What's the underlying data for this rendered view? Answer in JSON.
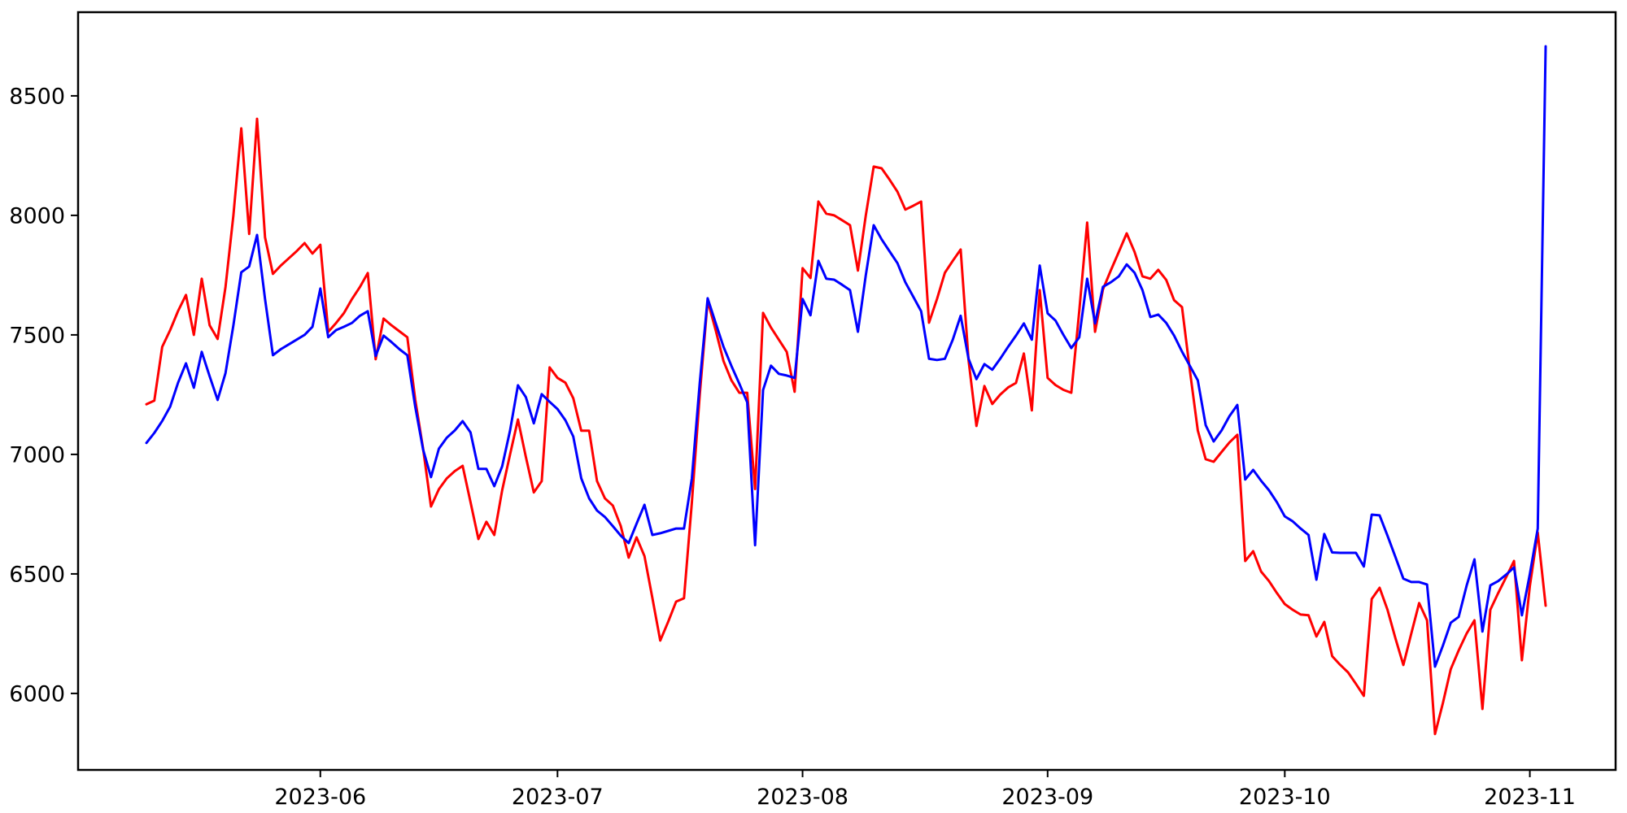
{
  "figure": {
    "background_color": "#ffffff",
    "frame_color": "#000000",
    "tick_label_color": "#000000"
  },
  "chart_data": {
    "type": "line",
    "title": "",
    "xlabel": "",
    "ylabel": "",
    "grid": false,
    "legend": null,
    "ylim": [
      5680,
      8850
    ],
    "y_ticks": [
      {
        "label": "6000",
        "value": 6000
      },
      {
        "label": "6500",
        "value": 6500
      },
      {
        "label": "7000",
        "value": 7000
      },
      {
        "label": "7500",
        "value": 7500
      },
      {
        "label": "8000",
        "value": 8000
      },
      {
        "label": "8500",
        "value": 8500
      }
    ],
    "x_ticks": [
      {
        "label": "2023-06",
        "index": 22
      },
      {
        "label": "2023-07",
        "index": 52
      },
      {
        "label": "2023-08",
        "index": 83
      },
      {
        "label": "2023-09",
        "index": 114
      },
      {
        "label": "2023-10",
        "index": 144
      },
      {
        "label": "2023-11",
        "index": 175
      }
    ],
    "dates": [
      "2023-05-10",
      "2023-05-11",
      "2023-05-12",
      "2023-05-13",
      "2023-05-14",
      "2023-05-15",
      "2023-05-16",
      "2023-05-17",
      "2023-05-18",
      "2023-05-19",
      "2023-05-20",
      "2023-05-21",
      "2023-05-22",
      "2023-05-23",
      "2023-05-24",
      "2023-05-25",
      "2023-05-26",
      "2023-05-27",
      "2023-05-28",
      "2023-05-29",
      "2023-05-30",
      "2023-05-31",
      "2023-06-01",
      "2023-06-02",
      "2023-06-03",
      "2023-06-04",
      "2023-06-05",
      "2023-06-06",
      "2023-06-07",
      "2023-06-08",
      "2023-06-09",
      "2023-06-10",
      "2023-06-11",
      "2023-06-12",
      "2023-06-13",
      "2023-06-14",
      "2023-06-15",
      "2023-06-16",
      "2023-06-17",
      "2023-06-18",
      "2023-06-19",
      "2023-06-20",
      "2023-06-21",
      "2023-06-22",
      "2023-06-23",
      "2023-06-24",
      "2023-06-25",
      "2023-06-26",
      "2023-06-27",
      "2023-06-28",
      "2023-06-29",
      "2023-06-30",
      "2023-07-01",
      "2023-07-02",
      "2023-07-03",
      "2023-07-04",
      "2023-07-05",
      "2023-07-06",
      "2023-07-07",
      "2023-07-08",
      "2023-07-09",
      "2023-07-10",
      "2023-07-11",
      "2023-07-12",
      "2023-07-13",
      "2023-07-14",
      "2023-07-15",
      "2023-07-16",
      "2023-07-17",
      "2023-07-18",
      "2023-07-19",
      "2023-07-20",
      "2023-07-21",
      "2023-07-22",
      "2023-07-23",
      "2023-07-24",
      "2023-07-25",
      "2023-07-26",
      "2023-07-27",
      "2023-07-28",
      "2023-07-29",
      "2023-07-30",
      "2023-07-31",
      "2023-08-01",
      "2023-08-02",
      "2023-08-03",
      "2023-08-04",
      "2023-08-05",
      "2023-08-06",
      "2023-08-07",
      "2023-08-08",
      "2023-08-09",
      "2023-08-10",
      "2023-08-11",
      "2023-08-12",
      "2023-08-13",
      "2023-08-14",
      "2023-08-15",
      "2023-08-16",
      "2023-08-17",
      "2023-08-18",
      "2023-08-19",
      "2023-08-20",
      "2023-08-21",
      "2023-08-22",
      "2023-08-23",
      "2023-08-24",
      "2023-08-25",
      "2023-08-26",
      "2023-08-27",
      "2023-08-28",
      "2023-08-29",
      "2023-08-30",
      "2023-08-31",
      "2023-09-01",
      "2023-09-02",
      "2023-09-03",
      "2023-09-04",
      "2023-09-05",
      "2023-09-06",
      "2023-09-07",
      "2023-09-08",
      "2023-09-09",
      "2023-09-10",
      "2023-09-11",
      "2023-09-12",
      "2023-09-13",
      "2023-09-14",
      "2023-09-15",
      "2023-09-16",
      "2023-09-17",
      "2023-09-18",
      "2023-09-19",
      "2023-09-20",
      "2023-09-21",
      "2023-09-22",
      "2023-09-23",
      "2023-09-24",
      "2023-09-25",
      "2023-09-26",
      "2023-09-27",
      "2023-09-28",
      "2023-09-29",
      "2023-09-30",
      "2023-10-01",
      "2023-10-02",
      "2023-10-03",
      "2023-10-04",
      "2023-10-05",
      "2023-10-06",
      "2023-10-07",
      "2023-10-08",
      "2023-10-09",
      "2023-10-10",
      "2023-10-11",
      "2023-10-12",
      "2023-10-13",
      "2023-10-14",
      "2023-10-15",
      "2023-10-16",
      "2023-10-17",
      "2023-10-18",
      "2023-10-19",
      "2023-10-20",
      "2023-10-21",
      "2023-10-22",
      "2023-10-23",
      "2023-10-24",
      "2023-10-25",
      "2023-10-26",
      "2023-10-27",
      "2023-10-28",
      "2023-10-29",
      "2023-10-30",
      "2023-10-31",
      "2023-11-01",
      "2023-11-02",
      "2023-11-03"
    ],
    "series": [
      {
        "name": "red-line",
        "color": "#ff0000",
        "values": [
          7210,
          7225,
          7450,
          7520,
          7600,
          7667,
          7500,
          7735,
          7540,
          7483,
          7700,
          8000,
          8364,
          7922,
          8404,
          7908,
          7755,
          7790,
          7820,
          7850,
          7884,
          7840,
          7877,
          7513,
          7550,
          7592,
          7650,
          7700,
          7759,
          7398,
          7568,
          7540,
          7515,
          7490,
          7230,
          7024,
          6782,
          6854,
          6900,
          6930,
          6952,
          6800,
          6646,
          6718,
          6663,
          6850,
          7000,
          7146,
          6990,
          6841,
          6888,
          7364,
          7320,
          7300,
          7235,
          7099,
          7099,
          6888,
          6816,
          6786,
          6700,
          6568,
          6653,
          6575,
          6400,
          6221,
          6300,
          6384,
          6398,
          6800,
          7250,
          7643,
          7520,
          7390,
          7310,
          7258,
          7258,
          6855,
          7592,
          7531,
          7480,
          7429,
          7262,
          7779,
          7738,
          8058,
          8007,
          8000,
          7980,
          7959,
          7769,
          8000,
          8204,
          8197,
          8150,
          8099,
          8024,
          8040,
          8058,
          7551,
          7650,
          7760,
          7810,
          7857,
          7394,
          7119,
          7286,
          7211,
          7250,
          7280,
          7299,
          7422,
          7184,
          7687,
          7320,
          7290,
          7270,
          7258,
          7600,
          7970,
          7513,
          7690,
          7770,
          7847,
          7925,
          7847,
          7745,
          7735,
          7772,
          7730,
          7645,
          7616,
          7350,
          7100,
          6980,
          6969,
          7010,
          7050,
          7082,
          6554,
          6595,
          6510,
          6470,
          6420,
          6374,
          6350,
          6330,
          6327,
          6238,
          6299,
          6156,
          6120,
          6088,
          6040,
          5990,
          6395,
          6442,
          6350,
          6230,
          6119,
          6250,
          6378,
          6306,
          5830,
          5960,
          6102,
          6180,
          6250,
          6306,
          5935,
          6350,
          6420,
          6486,
          6554,
          6139,
          6450,
          6673,
          6367
        ]
      },
      {
        "name": "blue-line",
        "color": "#0000ff",
        "values": [
          7048,
          7090,
          7140,
          7200,
          7300,
          7381,
          7279,
          7429,
          7327,
          7228,
          7340,
          7540,
          7762,
          7786,
          7918,
          7650,
          7415,
          7440,
          7460,
          7480,
          7500,
          7534,
          7694,
          7490,
          7520,
          7534,
          7550,
          7580,
          7599,
          7412,
          7497,
          7470,
          7440,
          7415,
          7200,
          7020,
          6905,
          7024,
          7070,
          7100,
          7139,
          7092,
          6939,
          6939,
          6867,
          6950,
          7100,
          7289,
          7240,
          7130,
          7252,
          7220,
          7190,
          7143,
          7075,
          6900,
          6816,
          6765,
          6738,
          6700,
          6660,
          6629,
          6710,
          6789,
          6663,
          6670,
          6680,
          6690,
          6690,
          6900,
          7300,
          7653,
          7550,
          7450,
          7370,
          7296,
          7218,
          6620,
          7269,
          7371,
          7337,
          7330,
          7320,
          7650,
          7582,
          7810,
          7735,
          7731,
          7710,
          7687,
          7513,
          7750,
          7959,
          7900,
          7850,
          7800,
          7720,
          7660,
          7599,
          7400,
          7395,
          7400,
          7480,
          7580,
          7400,
          7315,
          7378,
          7354,
          7400,
          7450,
          7497,
          7548,
          7480,
          7790,
          7590,
          7560,
          7500,
          7445,
          7490,
          7735,
          7548,
          7701,
          7720,
          7745,
          7795,
          7760,
          7687,
          7575,
          7585,
          7550,
          7497,
          7430,
          7370,
          7310,
          7122,
          7054,
          7100,
          7160,
          7207,
          6895,
          6935,
          6890,
          6850,
          6800,
          6741,
          6720,
          6690,
          6663,
          6476,
          6667,
          6590,
          6588,
          6588,
          6588,
          6531,
          6748,
          6745,
          6660,
          6570,
          6480,
          6466,
          6466,
          6456,
          6112,
          6200,
          6296,
          6320,
          6450,
          6561,
          6259,
          6452,
          6470,
          6497,
          6527,
          6327,
          6500,
          6690,
          8707
        ]
      }
    ]
  }
}
